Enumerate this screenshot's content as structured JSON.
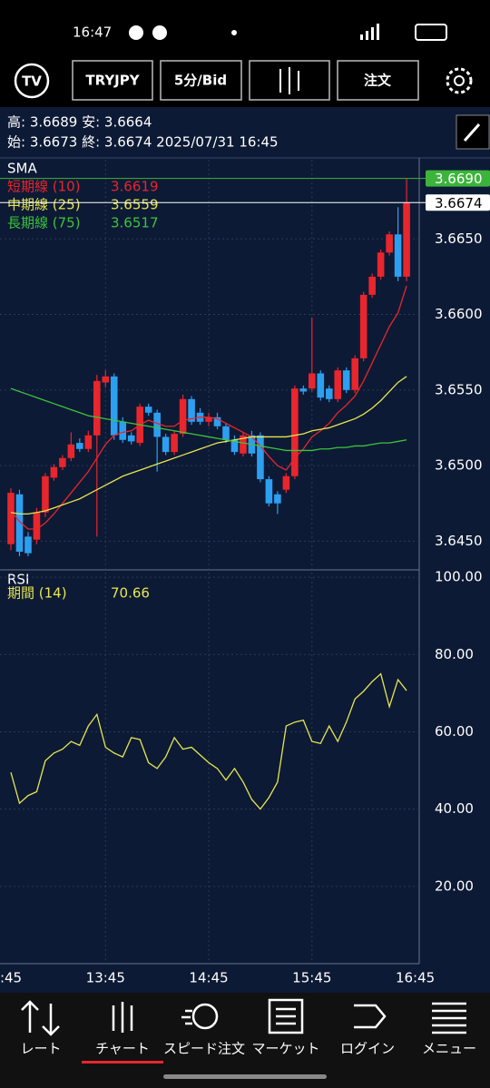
{
  "status_bar": {
    "time": "16:47"
  },
  "toolbar": {
    "symbol": "TRYJPY",
    "interval": "5分/Bid",
    "order": "注文"
  },
  "info": {
    "line1": "高: 3.6689 安: 3.6664",
    "line2": "始: 3.6673 終: 3.6674 2025/07/31 16:45"
  },
  "chart_data": [
    {
      "type": "candlestick",
      "title": "SMA",
      "up_color": "#e8262d",
      "down_color": "#2d9ff0",
      "open": [
        3.6448,
        3.6481,
        3.6453,
        3.6451,
        3.6469,
        3.6492,
        3.6499,
        3.6505,
        3.6515,
        3.6511,
        3.652,
        3.6555,
        3.6559,
        3.6529,
        3.652,
        3.6515,
        3.6539,
        3.6535,
        3.6519,
        3.6509,
        3.6521,
        3.6544,
        3.6535,
        3.6529,
        3.6532,
        3.6526,
        3.6517,
        3.6508,
        3.652,
        3.652,
        3.6491,
        3.6481,
        3.6484,
        3.6493,
        3.6551,
        3.6551,
        3.6561,
        3.6551,
        3.6544,
        3.6563,
        3.655,
        3.6571,
        3.6613,
        3.6625,
        3.6641,
        3.6653,
        3.6625
      ],
      "high": [
        3.6485,
        3.6484,
        3.6456,
        3.6472,
        3.6495,
        3.6501,
        3.6507,
        3.6522,
        3.6518,
        3.6523,
        3.656,
        3.6563,
        3.6561,
        3.6532,
        3.6522,
        3.6541,
        3.6541,
        3.6537,
        3.6521,
        3.6523,
        3.6547,
        3.6546,
        3.6538,
        3.6535,
        3.6535,
        3.6528,
        3.652,
        3.6522,
        3.6523,
        3.6522,
        3.6493,
        3.6483,
        3.6495,
        3.6553,
        3.6553,
        3.6598,
        3.6563,
        3.6553,
        3.6565,
        3.6565,
        3.6573,
        3.6615,
        3.6627,
        3.6643,
        3.6655,
        3.6671,
        3.669
      ],
      "low": [
        3.6444,
        3.644,
        3.644,
        3.6448,
        3.6466,
        3.649,
        3.6497,
        3.6503,
        3.6509,
        3.6509,
        3.6453,
        3.6552,
        3.6517,
        3.6515,
        3.6514,
        3.6513,
        3.6533,
        3.6496,
        3.6507,
        3.6507,
        3.6519,
        3.6527,
        3.6527,
        3.6526,
        3.6524,
        3.6515,
        3.6507,
        3.6506,
        3.6506,
        3.6489,
        3.6473,
        3.6468,
        3.6482,
        3.6491,
        3.6547,
        3.6549,
        3.6543,
        3.6542,
        3.6542,
        3.6548,
        3.6548,
        3.6569,
        3.6611,
        3.6623,
        3.6639,
        3.6622,
        3.6622
      ],
      "close": [
        3.6482,
        3.6443,
        3.6442,
        3.6469,
        3.6493,
        3.6499,
        3.6505,
        3.6514,
        3.6511,
        3.652,
        3.6556,
        3.6559,
        3.652,
        3.6517,
        3.6516,
        3.6539,
        3.6535,
        3.6519,
        3.6509,
        3.6521,
        3.6544,
        3.6529,
        3.6529,
        3.6532,
        3.6526,
        3.6517,
        3.6509,
        3.652,
        3.6508,
        3.6491,
        3.6475,
        3.6475,
        3.6493,
        3.6551,
        3.6549,
        3.6561,
        3.6545,
        3.6544,
        3.6563,
        3.655,
        3.6571,
        3.6613,
        3.6625,
        3.6641,
        3.6653,
        3.6625,
        3.6674
      ],
      "series": [
        {
          "name": "短期線 (10)",
          "color": "#e8262d",
          "values": [
            3.647,
            3.6463,
            3.6458,
            3.6458,
            3.6462,
            3.6468,
            3.6475,
            3.6482,
            3.6489,
            3.6496,
            3.6505,
            3.6514,
            3.652,
            3.6522,
            3.6523,
            3.6527,
            3.653,
            3.6528,
            3.6526,
            3.6526,
            3.653,
            3.6531,
            3.6532,
            3.6532,
            3.6531,
            3.6528,
            3.6525,
            3.6522,
            3.6519,
            3.6513,
            3.6506,
            3.65,
            3.6497,
            3.6505,
            3.6511,
            3.6519,
            3.6523,
            3.6528,
            3.6535,
            3.654,
            3.6546,
            3.6556,
            3.6568,
            3.658,
            3.6592,
            3.6601,
            3.6619
          ]
        },
        {
          "name": "中期線 (25)",
          "color": "#e6e650",
          "values": [
            3.6469,
            3.6468,
            3.6468,
            3.6469,
            3.647,
            3.6472,
            3.6474,
            3.6476,
            3.6478,
            3.6481,
            3.6484,
            3.6487,
            3.649,
            3.6493,
            3.6495,
            3.6497,
            3.6499,
            3.6501,
            3.6503,
            3.6505,
            3.6507,
            3.6509,
            3.6511,
            3.6513,
            3.6515,
            3.6516,
            3.6517,
            3.6518,
            3.6519,
            3.6519,
            3.6519,
            3.6519,
            3.6519,
            3.652,
            3.6521,
            3.6523,
            3.6524,
            3.6525,
            3.6527,
            3.6529,
            3.6531,
            3.6534,
            3.6538,
            3.6543,
            3.6549,
            3.6555,
            3.6559
          ]
        },
        {
          "name": "長期線 (75)",
          "color": "#3cc43c",
          "values": [
            3.6551,
            3.6549,
            3.6547,
            3.6545,
            3.6543,
            3.6541,
            3.6539,
            3.6537,
            3.6535,
            3.6533,
            3.6532,
            3.6531,
            3.653,
            3.6529,
            3.6528,
            3.6527,
            3.6526,
            3.6525,
            3.6524,
            3.6523,
            3.6522,
            3.6521,
            3.652,
            3.6519,
            3.6518,
            3.6517,
            3.6516,
            3.6515,
            3.6514,
            3.6513,
            3.6512,
            3.6511,
            3.651,
            3.651,
            3.651,
            3.651,
            3.6511,
            3.6511,
            3.6512,
            3.6512,
            3.6513,
            3.6513,
            3.6514,
            3.6515,
            3.6515,
            3.6516,
            3.6517
          ]
        }
      ],
      "price_lines": [
        {
          "value": 3.669,
          "label": "3.6690",
          "color": "#3cb43c"
        },
        {
          "value": 3.6674,
          "label": "3.6674",
          "color": "#ffffff"
        }
      ],
      "ylim": [
        3.6431,
        3.67
      ],
      "yticks": [
        {
          "value": 3.665,
          "label": "3.6650"
        },
        {
          "value": 3.66,
          "label": "3.6600"
        },
        {
          "value": 3.655,
          "label": "3.6550"
        },
        {
          "value": 3.65,
          "label": "3.6500"
        },
        {
          "value": 3.645,
          "label": "3.6450"
        }
      ],
      "xticks": [
        {
          "value": -1,
          "label": ":45"
        },
        {
          "value": 11,
          "label": "13:45"
        },
        {
          "value": 23,
          "label": "14:45"
        },
        {
          "value": 35,
          "label": "15:45"
        },
        {
          "value": 47,
          "label": "16:45"
        }
      ]
    },
    {
      "type": "line",
      "title": "RSI",
      "series": [
        {
          "name": "期間 (14)",
          "color": "#e6e650",
          "values": [
            49.5,
            41.5,
            43.5,
            44.5,
            52.5,
            54.5,
            55.5,
            57.5,
            56.5,
            61.5,
            64.5,
            56.0,
            54.5,
            53.5,
            58.5,
            58.0,
            52.0,
            50.5,
            53.5,
            58.5,
            55.5,
            56.0,
            54.0,
            52.0,
            50.5,
            47.5,
            50.5,
            47.0,
            42.5,
            40.0,
            43.0,
            47.0,
            61.5,
            62.5,
            63.0,
            57.5,
            57.0,
            61.5,
            57.5,
            62.5,
            68.5,
            70.5,
            73.0,
            75.0,
            66.5,
            73.5,
            70.66
          ]
        }
      ],
      "ylim": [
        0,
        101.9
      ],
      "yticks": [
        {
          "value": 100,
          "label": "100.00"
        },
        {
          "value": 80,
          "label": "80.00"
        },
        {
          "value": 60,
          "label": "60.00"
        },
        {
          "value": 40,
          "label": "40.00"
        },
        {
          "value": 20,
          "label": "20.00"
        }
      ]
    }
  ],
  "nav": [
    "レート",
    "チャート",
    "スピード注文",
    "マーケット",
    "ログイン",
    "メニュー"
  ]
}
